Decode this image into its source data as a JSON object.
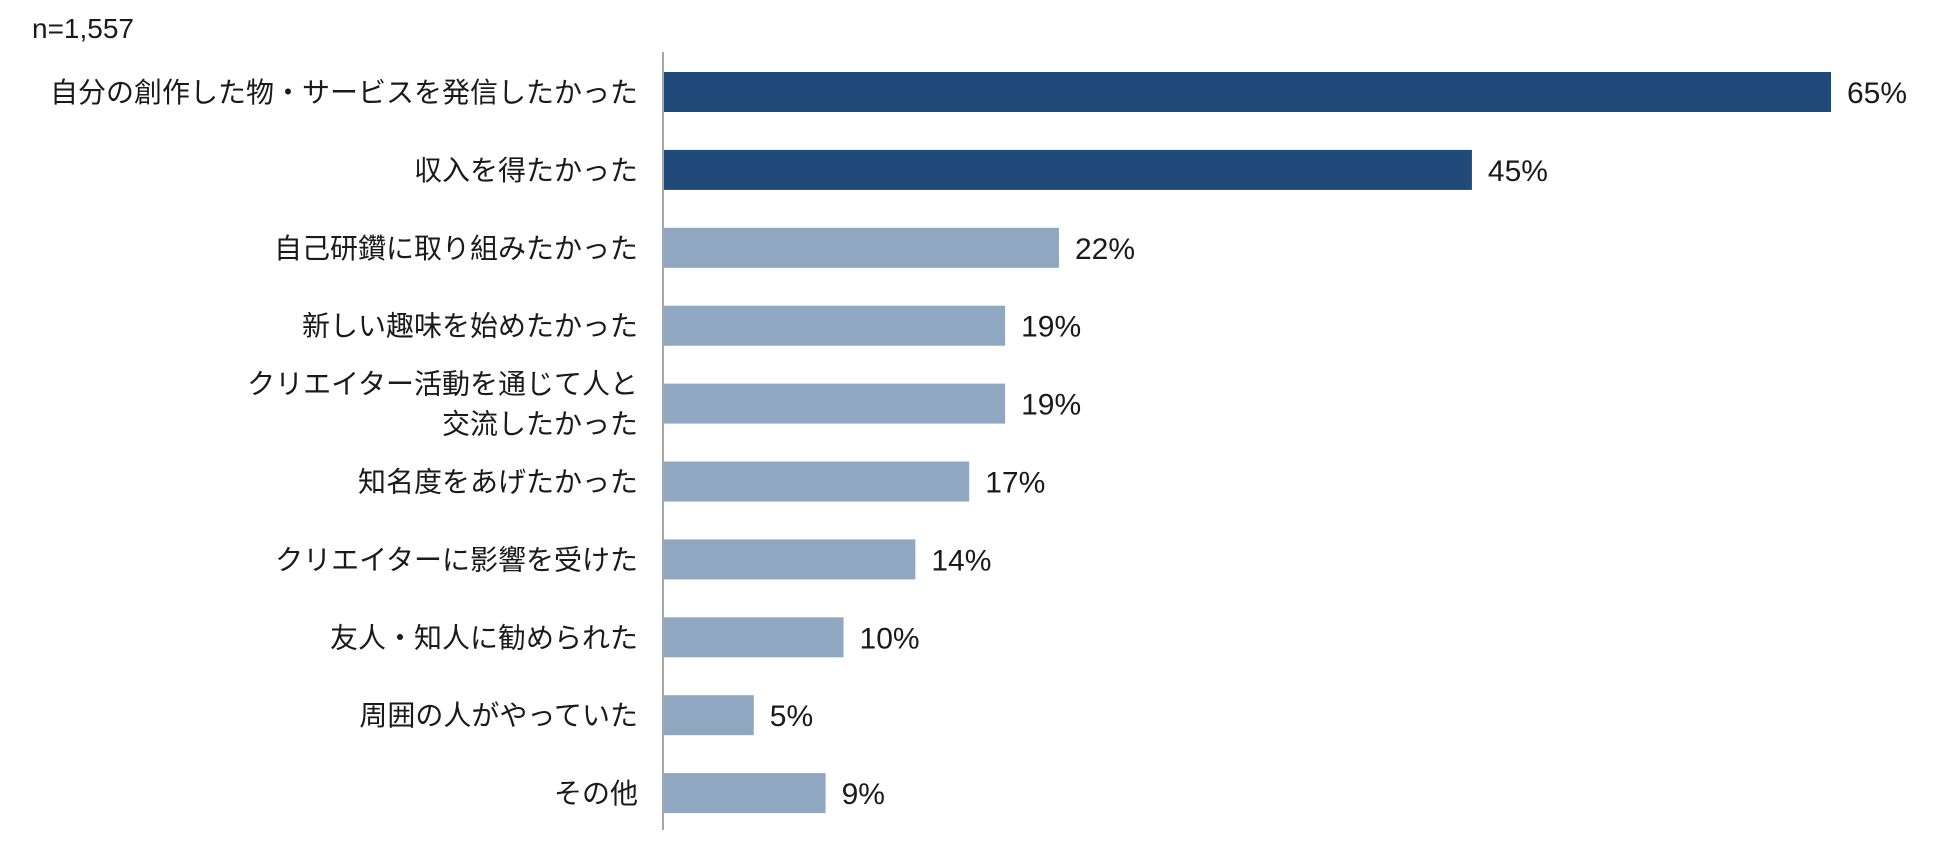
{
  "chart_data": {
    "type": "bar",
    "orientation": "horizontal",
    "sample_size_label": "n=1,557",
    "value_suffix": "%",
    "xlim": [
      0,
      65
    ],
    "grid": false,
    "legend": "none",
    "colors": {
      "highlight": "#1f4a7a",
      "default": "#8fa7c1",
      "axis": "#a6a6a6"
    },
    "categories": [
      [
        "自分の創作した物・サービスを発信したかった"
      ],
      [
        "収入を得たかった"
      ],
      [
        "自己研鑽に取り組みたかった"
      ],
      [
        "新しい趣味を始めたかった"
      ],
      [
        "クリエイター活動を通じて人と",
        "交流したかった"
      ],
      [
        "知名度をあげたかった"
      ],
      [
        "クリエイターに影響を受けた"
      ],
      [
        "友人・知人に勧められた"
      ],
      [
        "周囲の人がやっていた"
      ],
      [
        "その他"
      ]
    ],
    "values": [
      65,
      45,
      22,
      19,
      19,
      17,
      14,
      10,
      5,
      9
    ],
    "highlight": [
      true,
      true,
      false,
      false,
      false,
      false,
      false,
      false,
      false,
      false
    ]
  }
}
